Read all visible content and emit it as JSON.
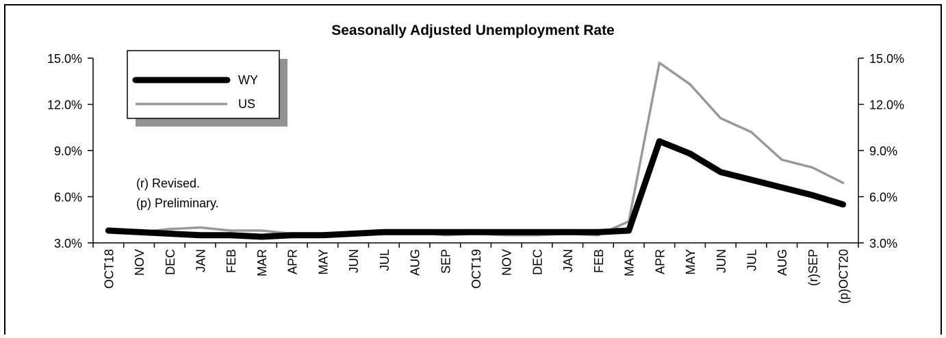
{
  "chart_data": {
    "type": "line",
    "title": "Seasonally Adjusted Unemployment Rate",
    "xlabel": "",
    "ylabel": "",
    "ylim": [
      3.0,
      15.0
    ],
    "ytick_labels": [
      "3.0%",
      "6.0%",
      "9.0%",
      "12.0%",
      "15.0%"
    ],
    "categories": [
      "OCT18",
      "NOV",
      "DEC",
      "JAN",
      "FEB",
      "MAR",
      "APR",
      "MAY",
      "JUN",
      "JUL",
      "AUG",
      "SEP",
      "OCT19",
      "NOV",
      "DEC",
      "JAN",
      "FEB",
      "MAR",
      "APR",
      "MAY",
      "JUN",
      "JUL",
      "AUG",
      "(r)SEP",
      "(p)OCT20"
    ],
    "series": [
      {
        "name": "WY",
        "color": "#000000",
        "values": [
          3.8,
          3.7,
          3.6,
          3.5,
          3.5,
          3.4,
          3.5,
          3.5,
          3.6,
          3.7,
          3.7,
          3.7,
          3.7,
          3.7,
          3.7,
          3.7,
          3.7,
          3.8,
          9.6,
          8.8,
          7.6,
          7.1,
          6.6,
          6.1,
          5.5
        ]
      },
      {
        "name": "US",
        "color": "#999999",
        "values": [
          3.8,
          3.7,
          3.9,
          4.0,
          3.8,
          3.8,
          3.6,
          3.6,
          3.7,
          3.7,
          3.7,
          3.5,
          3.6,
          3.5,
          3.5,
          3.6,
          3.5,
          4.4,
          14.7,
          13.3,
          11.1,
          10.2,
          8.4,
          7.9,
          6.9
        ]
      }
    ],
    "grid": false,
    "legend_position": "top-left",
    "notes": [
      "(r) Revised.",
      "(p) Preliminary."
    ]
  }
}
